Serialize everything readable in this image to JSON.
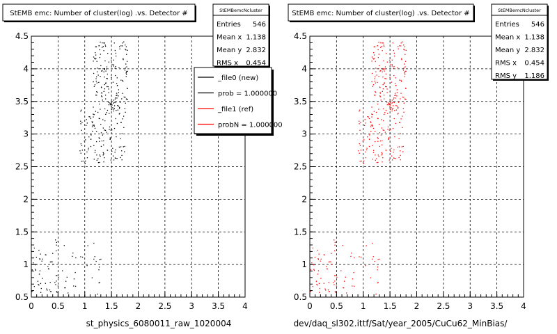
{
  "chart_data": [
    {
      "type": "scatter",
      "title": "StEMB emc: Number of cluster(log) .vs. Detector #",
      "xlabel": "st_physics_6080011_raw_1020004",
      "ylabel": "",
      "xlim": [
        0,
        4
      ],
      "ylim": [
        0.5,
        4.5
      ],
      "x_ticks": [
        "0",
        "0.5",
        "1",
        "1.5",
        "2",
        "2.5",
        "3",
        "3.5",
        "4"
      ],
      "y_ticks": [
        "0.5",
        "1",
        "1.5",
        "2",
        "2.5",
        "3",
        "3.5",
        "4",
        "4.5"
      ],
      "grid": true,
      "stats": {
        "title": "StEMBemcNcluster",
        "rows": [
          {
            "label": "Entries",
            "value": "546"
          },
          {
            "label": "Mean x",
            "value": "1.138"
          },
          {
            "label": "Mean y",
            "value": "2.832"
          },
          {
            "label": "RMS x",
            "value": "0.454"
          }
        ]
      },
      "legend": {
        "placement": "top-right",
        "entries": [
          {
            "label": "_file0 (new)",
            "color": "#000000"
          },
          {
            "label": "prob = 1.000000",
            "color": "#000000"
          },
          {
            "label": "_file1 (ref)",
            "color": "#ff0000"
          },
          {
            "label": "probN = 1.000000",
            "color": "#ff0000"
          }
        ]
      },
      "series": [
        {
          "color": "#000000",
          "clusters": [
            {
              "x": [
                0.0,
                0.5
              ],
              "y": [
                0.55,
                1.4
              ],
              "n": 55
            },
            {
              "x": [
                0.55,
                1.35
              ],
              "y": [
                0.55,
                1.35
              ],
              "n": 30
            },
            {
              "x": [
                0.9,
                1.4
              ],
              "y": [
                2.55,
                3.4
              ],
              "n": 85
            },
            {
              "x": [
                1.15,
                1.8
              ],
              "y": [
                3.3,
                4.45
              ],
              "n": 160
            },
            {
              "x": [
                1.4,
                1.75
              ],
              "y": [
                2.6,
                3.6
              ],
              "n": 60
            }
          ]
        }
      ]
    },
    {
      "type": "scatter",
      "title": "StEMB emc: Number of cluster(log) .vs. Detector #",
      "xlabel": "dev/daq_sl302.ittf/Sat/year_2005/CuCu62_MinBias/",
      "ylabel": "",
      "xlim": [
        0,
        4
      ],
      "ylim": [
        0.5,
        4.5
      ],
      "x_ticks": [
        "0",
        "0.5",
        "1",
        "1.5",
        "2",
        "2.5",
        "3",
        "3.5",
        "4"
      ],
      "y_ticks": [
        "0.5",
        "1",
        "1.5",
        "2",
        "2.5",
        "3",
        "3.5",
        "4",
        "4.5"
      ],
      "grid": true,
      "stats": {
        "title": "StEMBemcNcluster",
        "rows": [
          {
            "label": "Entries",
            "value": "546"
          },
          {
            "label": "Mean x",
            "value": "1.138"
          },
          {
            "label": "Mean y",
            "value": "2.832"
          },
          {
            "label": "RMS x",
            "value": "0.454"
          },
          {
            "label": "RMS y",
            "value": "1.186"
          }
        ]
      },
      "series": [
        {
          "color": "#ff0000",
          "clusters": [
            {
              "x": [
                0.0,
                0.5
              ],
              "y": [
                0.55,
                1.4
              ],
              "n": 55
            },
            {
              "x": [
                0.55,
                1.35
              ],
              "y": [
                0.55,
                1.35
              ],
              "n": 30
            },
            {
              "x": [
                0.9,
                1.4
              ],
              "y": [
                2.55,
                3.4
              ],
              "n": 85
            },
            {
              "x": [
                1.15,
                1.8
              ],
              "y": [
                3.3,
                4.45
              ],
              "n": 160
            },
            {
              "x": [
                1.4,
                1.75
              ],
              "y": [
                2.6,
                3.6
              ],
              "n": 60
            }
          ]
        }
      ]
    }
  ]
}
